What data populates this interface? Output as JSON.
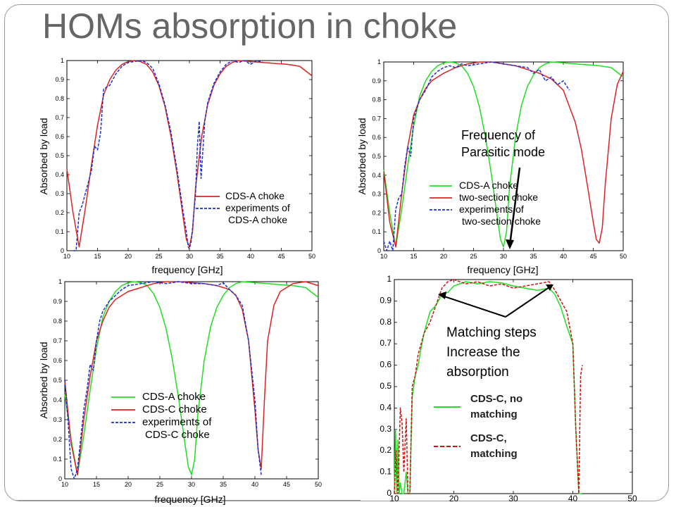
{
  "slide": {
    "title": "HOMs absorption in choke",
    "colors": {
      "green": "#22dd22",
      "red": "#dd2222",
      "blue": "#1a2fd6",
      "darkred": "#cc1111",
      "arrow": "#000000"
    }
  },
  "chart_data": [
    {
      "id": "top-left",
      "type": "line",
      "xlabel": "frequency [GHz]",
      "ylabel": "Absorbed by load",
      "xlim": [
        10,
        50
      ],
      "ylim": [
        0,
        1
      ],
      "xticks": [
        10,
        15,
        20,
        25,
        30,
        35,
        40,
        45,
        50
      ],
      "yticks": [
        0,
        0.1,
        0.2,
        0.3,
        0.4,
        0.5,
        0.6,
        0.7,
        0.8,
        0.9,
        1
      ],
      "legend": [
        "CDS-A choke",
        "experiments of",
        "CDS-A choke"
      ],
      "series": [
        {
          "name": "CDS-A choke",
          "color": "red",
          "dash": "solid",
          "x": [
            10,
            11,
            12,
            13,
            14,
            15,
            16,
            17,
            18,
            19,
            20,
            21,
            22,
            23,
            24,
            25,
            26,
            27,
            28,
            29,
            29.5,
            30,
            30.5,
            31,
            32,
            33,
            34,
            35,
            36,
            37,
            38,
            40,
            42,
            44,
            46,
            48,
            50
          ],
          "y": [
            0.43,
            0.2,
            0.02,
            0.22,
            0.45,
            0.66,
            0.82,
            0.9,
            0.95,
            0.98,
            0.995,
            1.0,
            0.995,
            0.98,
            0.94,
            0.87,
            0.76,
            0.6,
            0.4,
            0.17,
            0.06,
            0.02,
            0.1,
            0.33,
            0.6,
            0.77,
            0.87,
            0.93,
            0.97,
            0.99,
            1.0,
            0.995,
            0.99,
            0.985,
            0.98,
            0.97,
            0.92
          ]
        },
        {
          "name": "experiments of CDS-A choke",
          "color": "blue",
          "dash": "dashed",
          "x": [
            11,
            11.5,
            12,
            12.5,
            13,
            13.5,
            14,
            14.5,
            15,
            15.5,
            16,
            17,
            18,
            19,
            20,
            21,
            22,
            23,
            24,
            25,
            26,
            27,
            28,
            29,
            29.5,
            29.8,
            30,
            30.3,
            30.6,
            31,
            31.3,
            31.6,
            31.9,
            32.5,
            33,
            34,
            35,
            36,
            37,
            38,
            39,
            40,
            41,
            42
          ],
          "y": [
            0.0,
            0.0,
            0.2,
            0.24,
            0.3,
            0.36,
            0.42,
            0.55,
            0.53,
            0.62,
            0.85,
            0.87,
            0.93,
            0.97,
            0.99,
            0.995,
            1.0,
            0.99,
            0.96,
            0.88,
            0.77,
            0.62,
            0.42,
            0.2,
            0.1,
            0.02,
            0.01,
            0.05,
            0.15,
            0.3,
            0.55,
            0.68,
            0.38,
            0.68,
            0.78,
            0.88,
            0.94,
            0.98,
            1.0,
            0.99,
            1.0,
            0.98,
            1.0,
            0.99
          ]
        }
      ]
    },
    {
      "id": "top-right",
      "type": "line",
      "xlabel": "frequency [GHz]",
      "ylabel": "Absorbed by load",
      "xlim": [
        10,
        50
      ],
      "ylim": [
        0,
        1
      ],
      "xticks": [
        10,
        15,
        20,
        25,
        30,
        35,
        40,
        45,
        50
      ],
      "yticks": [
        0,
        0.1,
        0.2,
        0.3,
        0.4,
        0.5,
        0.6,
        0.7,
        0.8,
        0.9,
        1
      ],
      "legend": [
        "CDS-A choke",
        "two-section choke",
        "experiments of",
        "two-section choke"
      ],
      "annotation": [
        "Frequency of",
        "Parasitic mode"
      ],
      "series": [
        {
          "name": "CDS-A choke",
          "color": "green",
          "dash": "solid",
          "x": [
            10,
            11,
            12,
            13,
            14,
            15,
            16,
            17,
            18,
            19,
            20,
            21,
            22,
            23,
            24,
            25,
            26,
            27,
            28,
            29,
            29.5,
            30,
            30.5,
            31,
            32,
            33,
            34,
            35,
            36,
            37,
            38,
            40,
            42,
            44,
            46,
            48,
            50
          ],
          "y": [
            0.43,
            0.2,
            0.02,
            0.22,
            0.45,
            0.66,
            0.82,
            0.9,
            0.95,
            0.98,
            0.995,
            1.0,
            0.995,
            0.98,
            0.94,
            0.87,
            0.76,
            0.6,
            0.4,
            0.17,
            0.06,
            0.02,
            0.1,
            0.33,
            0.6,
            0.77,
            0.87,
            0.93,
            0.97,
            0.99,
            1.0,
            0.995,
            0.99,
            0.985,
            0.98,
            0.97,
            0.92
          ]
        },
        {
          "name": "two-section choke",
          "color": "red",
          "dash": "solid",
          "x": [
            10,
            11,
            12,
            13,
            14,
            15,
            16,
            17,
            18,
            20,
            22,
            24,
            26,
            28,
            30,
            32,
            34,
            36,
            38,
            40,
            42,
            43,
            44,
            45,
            45.5,
            46,
            46.5,
            47,
            48,
            49,
            50
          ],
          "y": [
            0.42,
            0.15,
            0.02,
            0.3,
            0.55,
            0.72,
            0.8,
            0.86,
            0.9,
            0.94,
            0.97,
            0.99,
            1.0,
            1.0,
            0.99,
            0.98,
            0.96,
            0.94,
            0.91,
            0.85,
            0.68,
            0.54,
            0.35,
            0.15,
            0.06,
            0.04,
            0.12,
            0.35,
            0.7,
            0.88,
            0.95
          ]
        },
        {
          "name": "experiments of two-section choke",
          "color": "blue",
          "dash": "dashed",
          "x": [
            10,
            10.5,
            11,
            11.5,
            12,
            12.5,
            13,
            13.5,
            14,
            14.5,
            15,
            15.5,
            16,
            17,
            18,
            19,
            20,
            21,
            22,
            23,
            24,
            26,
            28,
            30,
            32,
            34,
            35,
            36,
            37,
            38,
            39,
            40,
            41
          ],
          "y": [
            0.05,
            0.0,
            0.05,
            0.0,
            0.22,
            0.28,
            0.3,
            0.45,
            0.55,
            0.5,
            0.7,
            0.75,
            0.8,
            0.85,
            0.92,
            0.95,
            0.97,
            0.98,
            0.97,
            0.99,
            0.98,
            0.99,
            1.0,
            0.99,
            0.98,
            0.97,
            0.94,
            0.96,
            0.9,
            0.92,
            0.88,
            0.9,
            0.85
          ]
        }
      ]
    },
    {
      "id": "bottom-left",
      "type": "line",
      "xlabel": "frequency [GHz]",
      "ylabel": "Absorbed by load",
      "xlim": [
        10,
        50
      ],
      "ylim": [
        0,
        1
      ],
      "xticks": [
        10,
        15,
        20,
        25,
        30,
        35,
        40,
        45,
        50
      ],
      "yticks": [
        0,
        0.1,
        0.2,
        0.3,
        0.4,
        0.5,
        0.6,
        0.7,
        0.8,
        0.9,
        1
      ],
      "legend": [
        "CDS-A choke",
        "CDS-C choke",
        "experiments of",
        "CDS-C choke"
      ],
      "series": [
        {
          "name": "CDS-A choke",
          "color": "green",
          "dash": "solid",
          "x": [
            10,
            11,
            12,
            13,
            14,
            15,
            16,
            17,
            18,
            19,
            20,
            21,
            22,
            23,
            24,
            25,
            26,
            27,
            28,
            29,
            29.5,
            30,
            30.5,
            31,
            32,
            33,
            34,
            35,
            36,
            37,
            38,
            40,
            42,
            44,
            46,
            48,
            50
          ],
          "y": [
            0.43,
            0.2,
            0.02,
            0.22,
            0.45,
            0.66,
            0.82,
            0.9,
            0.95,
            0.98,
            0.995,
            1.0,
            0.995,
            0.98,
            0.94,
            0.87,
            0.76,
            0.6,
            0.4,
            0.17,
            0.06,
            0.02,
            0.1,
            0.33,
            0.6,
            0.77,
            0.87,
            0.93,
            0.97,
            0.99,
            1.0,
            0.995,
            0.99,
            0.985,
            0.98,
            0.97,
            0.92
          ]
        },
        {
          "name": "CDS-C choke",
          "color": "red",
          "dash": "solid",
          "x": [
            10,
            11,
            12,
            13,
            14,
            15,
            16,
            17,
            18,
            20,
            22,
            24,
            26,
            28,
            30,
            32,
            34,
            36,
            37,
            38,
            39,
            40,
            40.5,
            41,
            41.5,
            42,
            43,
            44,
            46,
            48,
            50
          ],
          "y": [
            0.5,
            0.18,
            0.02,
            0.3,
            0.52,
            0.7,
            0.8,
            0.87,
            0.91,
            0.95,
            0.97,
            0.99,
            1.0,
            1.0,
            0.995,
            0.99,
            0.98,
            0.96,
            0.93,
            0.86,
            0.7,
            0.35,
            0.15,
            0.05,
            0.4,
            0.7,
            0.88,
            0.95,
            0.99,
            1.0,
            0.98
          ]
        },
        {
          "name": "experiments of CDS-C choke",
          "color": "blue",
          "dash": "dashed",
          "x": [
            10,
            10.5,
            11,
            11.5,
            12,
            12.5,
            13,
            13.5,
            14,
            14.5,
            15,
            15.5,
            16,
            17,
            18,
            19,
            20,
            22,
            24,
            26,
            28,
            30,
            32,
            34,
            35,
            36,
            37,
            38,
            39,
            40,
            40.5,
            41
          ],
          "y": [
            0.5,
            0.3,
            0.05,
            0.0,
            0.05,
            0.2,
            0.35,
            0.45,
            0.58,
            0.55,
            0.7,
            0.8,
            0.85,
            0.9,
            0.93,
            0.96,
            0.98,
            0.99,
            1.0,
            0.99,
            1.0,
            0.99,
            0.99,
            0.98,
            0.995,
            0.96,
            0.93,
            0.88,
            0.7,
            0.4,
            0.15,
            0.02
          ]
        }
      ]
    },
    {
      "id": "bottom-right",
      "type": "line",
      "xlim": [
        10,
        50
      ],
      "ylim": [
        0,
        1
      ],
      "xticks": [
        10,
        20,
        30,
        40,
        50
      ],
      "yticks": [
        0,
        0.1,
        0.2,
        0.3,
        0.4,
        0.5,
        0.6,
        0.7,
        0.8,
        0.9,
        1
      ],
      "legend": [
        [
          "CDS-C, no",
          "matching"
        ],
        [
          "CDS-C,",
          "matching"
        ]
      ],
      "annotation": [
        "Matching steps",
        "Increase the",
        "absorption"
      ],
      "series": [
        {
          "name": "CDS-C, no matching",
          "color": "green",
          "dash": "solid",
          "x": [
            10,
            10.2,
            10.4,
            10.6,
            10.8,
            11,
            11.3,
            11.6,
            12,
            12.3,
            12.6,
            13,
            13.5,
            14,
            14.5,
            15,
            16,
            17,
            18,
            19,
            20,
            22,
            24,
            26,
            28,
            30,
            32,
            34,
            36,
            37,
            38,
            39,
            40,
            40.5,
            41,
            41.5
          ],
          "y": [
            0.0,
            0.3,
            0.0,
            0.25,
            0.0,
            0.05,
            0.0,
            0.0,
            0.1,
            0.0,
            0.0,
            0.45,
            0.55,
            0.6,
            0.68,
            0.75,
            0.85,
            0.88,
            0.93,
            0.94,
            0.97,
            0.99,
            0.98,
            0.99,
            0.985,
            0.97,
            0.96,
            0.95,
            0.96,
            0.93,
            0.87,
            0.78,
            0.7,
            0.3,
            0.0,
            0.0
          ]
        },
        {
          "name": "CDS-C, matching",
          "color": "darkred",
          "dash": "dashed",
          "x": [
            10,
            10.3,
            10.6,
            11,
            11.3,
            11.6,
            12,
            12.3,
            12.6,
            13,
            13.5,
            14,
            15,
            16,
            17,
            18,
            19,
            20,
            22,
            24,
            26,
            28,
            30,
            32,
            34,
            36,
            37,
            38,
            39,
            40,
            40.5,
            41,
            41.3,
            41.6
          ],
          "y": [
            0.0,
            0.2,
            0.0,
            0.4,
            0.33,
            0.1,
            0.35,
            0.0,
            0.0,
            0.5,
            0.55,
            0.65,
            0.75,
            0.8,
            0.88,
            0.96,
            0.99,
            1.0,
            0.98,
            0.99,
            0.97,
            0.98,
            0.96,
            0.97,
            0.98,
            0.99,
            0.95,
            0.9,
            0.85,
            0.7,
            0.3,
            0.0,
            0.55,
            0.6
          ]
        }
      ]
    }
  ]
}
